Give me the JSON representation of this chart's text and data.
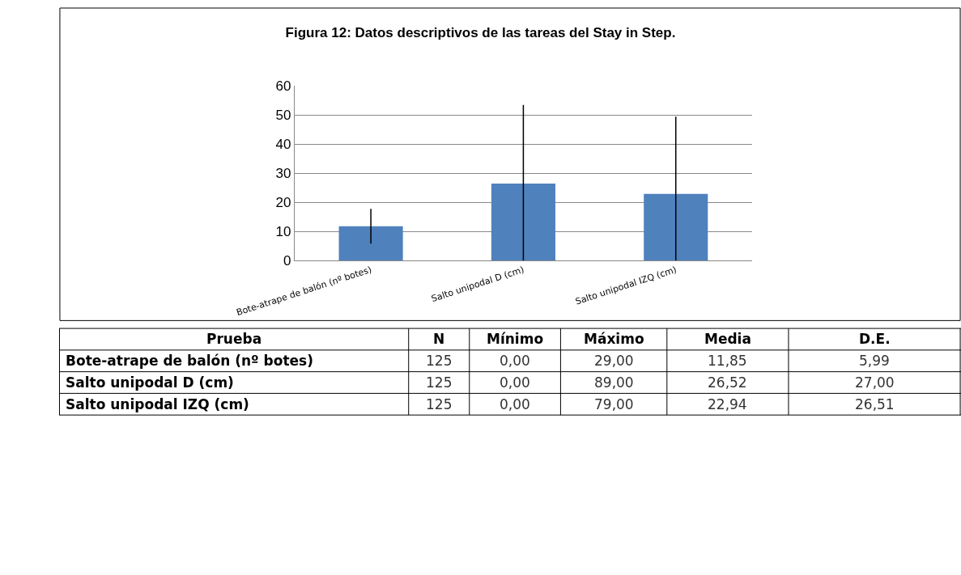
{
  "chart_data": {
    "type": "bar",
    "title": "Figura 12: Datos descriptivos de las tareas del Stay in Step.",
    "categories": [
      "Bote-atrape de balón (nº botes)",
      "Salto unipodal D (cm)",
      "Salto unipodal IZQ (cm)"
    ],
    "values": [
      11.85,
      26.52,
      22.94
    ],
    "errors": [
      [
        5.86,
        17.84
      ],
      [
        0,
        53.52
      ],
      [
        0,
        49.45
      ]
    ],
    "color": "#4f81bd",
    "ylim": [
      0,
      60
    ],
    "yticks": [
      0,
      10,
      20,
      30,
      40,
      50,
      60
    ],
    "grid": "y",
    "annotations": [
      "Prueba",
      "N",
      "Mínimo",
      "Máximo",
      "Media",
      "D.E.",
      "Bote-atrape de balón (nº botes)",
      "125",
      "0,00",
      "29,00",
      "11,85",
      "5,99",
      "Salto unipodal D (cm)",
      "125",
      "0,00",
      "89,00",
      "26,52",
      "27,00",
      "Salto unipodal IZQ (cm)",
      "125",
      "0,00",
      "79,00",
      "22,94",
      "26,51"
    ]
  }
}
